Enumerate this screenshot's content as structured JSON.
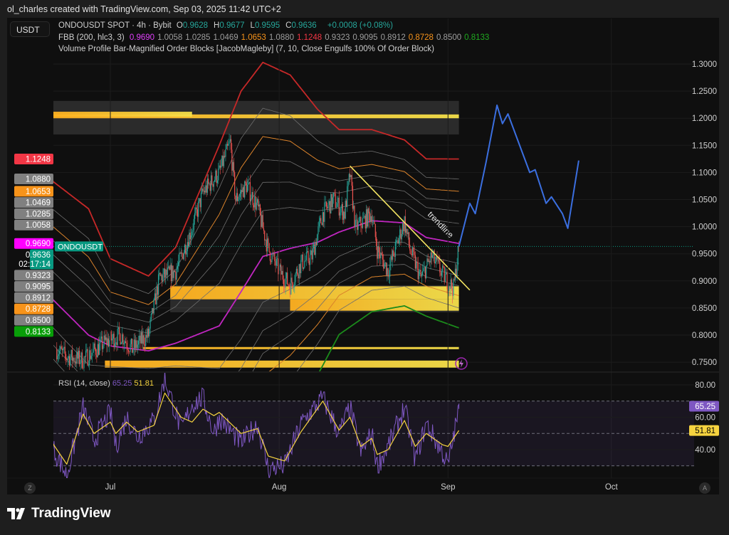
{
  "header": {
    "attribution": "ol_charles created with TradingView.com, Sep 03, 2025 11:42 UTC+2"
  },
  "currency_button": "USDT",
  "legend": {
    "symbol": "ONDOUSDT SPOT · 4h · Bybit",
    "ohlc": [
      {
        "k": "O",
        "v": "0.9628"
      },
      {
        "k": "H",
        "v": "0.9677"
      },
      {
        "k": "L",
        "v": "0.9595"
      },
      {
        "k": "C",
        "v": "0.9636"
      }
    ],
    "change": "+0.0008 (+0.08%)",
    "fbb_title": "FBB (200, hlc3, 3)",
    "fbb_values": [
      {
        "v": "0.9690",
        "color": "#e040fb"
      },
      {
        "v": "1.0058",
        "color": "#9e9e9e"
      },
      {
        "v": "1.0285",
        "color": "#9e9e9e"
      },
      {
        "v": "1.0469",
        "color": "#9e9e9e"
      },
      {
        "v": "1.0653",
        "color": "#f7931a"
      },
      {
        "v": "1.0880",
        "color": "#9e9e9e"
      },
      {
        "v": "1.1248",
        "color": "#f23645"
      },
      {
        "v": "0.9323",
        "color": "#9e9e9e"
      },
      {
        "v": "0.9095",
        "color": "#9e9e9e"
      },
      {
        "v": "0.8912",
        "color": "#9e9e9e"
      },
      {
        "v": "0.8728",
        "color": "#f7931a"
      },
      {
        "v": "0.8500",
        "color": "#9e9e9e"
      },
      {
        "v": "0.8133",
        "color": "#1faa1f"
      }
    ],
    "vp_title": "Volume Profile Bar-Magnified Order Blocks [JacobMagleby] (7, 10, Close Engulfs 100% Of Order Block)"
  },
  "price_axis": {
    "ticks": [
      "1.3000",
      "1.2500",
      "1.2000",
      "1.1500",
      "1.1000",
      "1.0500",
      "1.0000",
      "0.9500",
      "0.9000",
      "0.8500",
      "0.8000",
      "0.7500"
    ]
  },
  "badges": [
    {
      "value": "1.1248",
      "color": "#f23645"
    },
    {
      "value": "1.0880",
      "color": "#808080"
    },
    {
      "value": "1.0653",
      "color": "#f7931a"
    },
    {
      "value": "1.0469",
      "color": "#808080"
    },
    {
      "value": "1.0285",
      "color": "#808080"
    },
    {
      "value": "1.0058",
      "color": "#808080"
    },
    {
      "value": "0.9690",
      "color": "#ff00ff"
    },
    {
      "value": "0.9636",
      "color": "#089981",
      "current": true
    },
    {
      "value": "0.9323",
      "color": "#808080"
    },
    {
      "value": "0.9095",
      "color": "#808080"
    },
    {
      "value": "0.8912",
      "color": "#808080"
    },
    {
      "value": "0.8728",
      "color": "#f7931a"
    },
    {
      "value": "0.8500",
      "color": "#808080"
    },
    {
      "value": "0.8133",
      "color": "#089e08"
    }
  ],
  "current": {
    "symbol_tag": "ONDOUSDT",
    "price": "0.9636",
    "countdown": "02:17:14",
    "color": "#089981"
  },
  "time_axis": {
    "labels": [
      {
        "text": "Jul",
        "date": "2025-07-01"
      },
      {
        "text": "Aug",
        "date": "2025-08-01"
      },
      {
        "text": "Sep",
        "date": "2025-09-01"
      },
      {
        "text": "Oct",
        "date": "2025-10-01"
      }
    ]
  },
  "rsi": {
    "title": "RSI (14, close)",
    "value": "65.25",
    "ma_value": "51.81",
    "ticks": [
      "80.00",
      "60.00",
      "40.00"
    ],
    "color": "#7e57c2",
    "ma_color": "#f5d33f",
    "bands": [
      70,
      50,
      30
    ]
  },
  "buttons": {
    "z": "Z",
    "a": "A"
  },
  "brand": "TradingView",
  "chart_data": {
    "type": "candlestick",
    "symbol": "ONDOUSDT",
    "price_range": [
      0.73,
      1.32
    ],
    "candle_colors": {
      "up": "#26a69a",
      "down": "#ef5350"
    },
    "closes": [
      [
        "2025-06-21",
        0.774
      ],
      [
        "2025-06-23",
        0.76
      ],
      [
        "2025-06-26",
        0.754
      ],
      [
        "2025-06-30",
        0.787
      ],
      [
        "2025-07-03",
        0.8
      ],
      [
        "2025-07-05",
        0.774
      ],
      [
        "2025-07-08",
        0.8
      ],
      [
        "2025-07-10",
        0.905
      ],
      [
        "2025-07-13",
        0.918
      ],
      [
        "2025-07-16",
        0.997
      ],
      [
        "2025-07-18",
        1.063
      ],
      [
        "2025-07-21",
        1.1
      ],
      [
        "2025-07-23",
        1.155
      ],
      [
        "2025-07-24",
        1.05
      ],
      [
        "2025-07-26",
        1.076
      ],
      [
        "2025-07-28",
        1.037
      ],
      [
        "2025-07-30",
        0.958
      ],
      [
        "2025-08-01",
        0.918
      ],
      [
        "2025-08-03",
        0.892
      ],
      [
        "2025-08-05",
        0.932
      ],
      [
        "2025-08-07",
        0.945
      ],
      [
        "2025-08-09",
        1.024
      ],
      [
        "2025-08-11",
        1.05
      ],
      [
        "2025-08-13",
        1.024
      ],
      [
        "2025-08-14",
        1.096
      ],
      [
        "2025-08-15",
        0.997
      ],
      [
        "2025-08-18",
        1.024
      ],
      [
        "2025-08-19",
        0.958
      ],
      [
        "2025-08-21",
        0.918
      ],
      [
        "2025-08-24",
        1.01
      ],
      [
        "2025-08-25",
        0.958
      ],
      [
        "2025-08-27",
        0.905
      ],
      [
        "2025-08-29",
        0.945
      ],
      [
        "2025-08-31",
        0.912
      ],
      [
        "2025-09-02",
        0.886
      ],
      [
        "2025-09-03",
        0.9636
      ]
    ],
    "fbb": {
      "dates": [
        "2025-06-17",
        "2025-06-20",
        "2025-06-27",
        "2025-07-01",
        "2025-07-08",
        "2025-07-13",
        "2025-07-21",
        "2025-07-25",
        "2025-07-29",
        "2025-08-03",
        "2025-08-08",
        "2025-08-12",
        "2025-08-18",
        "2025-08-24",
        "2025-08-28",
        "2025-09-03"
      ],
      "basis": [
        0.875,
        0.87,
        0.8,
        0.78,
        0.771,
        0.785,
        0.817,
        0.88,
        0.945,
        0.96,
        0.971,
        0.99,
        1.011,
        1.007,
        0.98,
        0.969
      ],
      "upper": [
        1.09,
        1.087,
        1.033,
        0.941,
        0.909,
        0.962,
        1.15,
        1.25,
        1.303,
        1.28,
        1.217,
        1.179,
        1.179,
        1.16,
        1.125,
        1.1248
      ],
      "levels": [
        0.236,
        0.382,
        0.5,
        0.618,
        0.764,
        1
      ],
      "colors": {
        "basis": "#c026c0",
        "upper": "#c62828",
        "lower": "#1b8a1b",
        "fib618": "#d9822b",
        "other": "#6e6e6e"
      }
    },
    "order_blocks": [
      {
        "from": "2025-06-20",
        "to": "2025-09-03",
        "top": 1.232,
        "bottom": 1.17,
        "kind": "zone"
      },
      {
        "from": "2025-06-20",
        "to": "2025-09-03",
        "top": 1.207,
        "bottom": 1.2,
        "kind": "bar"
      },
      {
        "from": "2025-06-20",
        "to": "2025-07-16",
        "top": 1.212,
        "bottom": 1.203,
        "kind": "bar"
      },
      {
        "from": "2025-07-12",
        "to": "2025-09-03",
        "top": 0.892,
        "bottom": 0.842,
        "kind": "zone"
      },
      {
        "from": "2025-07-12",
        "to": "2025-09-03",
        "top": 0.89,
        "bottom": 0.866,
        "kind": "bar"
      },
      {
        "from": "2025-08-03",
        "to": "2025-09-03",
        "top": 0.866,
        "bottom": 0.845,
        "kind": "bar"
      },
      {
        "from": "2025-07-07",
        "to": "2025-09-03",
        "top": 0.778,
        "bottom": 0.774,
        "kind": "bar"
      },
      {
        "from": "2025-06-30",
        "to": "2025-09-03",
        "top": 0.753,
        "bottom": 0.74,
        "kind": "bar"
      }
    ],
    "trendline": {
      "label": "trendline",
      "from": [
        "2025-08-14",
        1.112
      ],
      "to": [
        "2025-09-05",
        0.883
      ],
      "color": "#f5e663"
    },
    "forecast": {
      "color": "#3b6fe0",
      "points": [
        [
          "2025-09-03",
          0.9636
        ],
        [
          "2025-09-05",
          1.043
        ],
        [
          "2025-09-06",
          1.024
        ],
        [
          "2025-09-08",
          1.12
        ],
        [
          "2025-09-10",
          1.224
        ],
        [
          "2025-09-11",
          1.19
        ],
        [
          "2025-09-12",
          1.208
        ],
        [
          "2025-09-16",
          1.1
        ],
        [
          "2025-09-17",
          1.105
        ],
        [
          "2025-09-19",
          1.043
        ],
        [
          "2025-09-20",
          1.055
        ],
        [
          "2025-09-22",
          1.024
        ],
        [
          "2025-09-23",
          0.997
        ],
        [
          "2025-09-25",
          1.122
        ]
      ]
    },
    "rsi_series": {
      "dates": [
        "2025-06-20",
        "2025-06-23",
        "2025-06-26",
        "2025-06-28",
        "2025-07-01",
        "2025-07-02",
        "2025-07-04",
        "2025-07-06",
        "2025-07-09",
        "2025-07-11",
        "2025-07-14",
        "2025-07-16",
        "2025-07-18",
        "2025-07-20",
        "2025-07-21",
        "2025-07-25",
        "2025-07-28",
        "2025-07-30",
        "2025-08-02",
        "2025-08-05",
        "2025-08-09",
        "2025-08-12",
        "2025-08-14",
        "2025-08-16",
        "2025-08-18",
        "2025-08-19",
        "2025-08-21",
        "2025-08-24",
        "2025-08-26",
        "2025-08-28",
        "2025-08-31",
        "2025-09-01",
        "2025-09-03"
      ],
      "rsi": [
        44,
        24,
        66,
        46,
        63,
        42,
        60,
        48,
        58,
        84,
        52,
        68,
        72,
        50,
        60,
        44,
        56,
        28,
        30,
        56,
        72,
        50,
        66,
        38,
        50,
        30,
        42,
        66,
        34,
        56,
        38,
        30,
        65.25
      ],
      "ma": [
        46,
        31,
        62,
        50,
        57,
        50,
        57,
        51,
        55,
        75,
        60,
        57,
        65,
        61,
        63,
        50,
        53,
        36,
        33,
        51,
        70,
        52,
        60,
        42,
        47,
        37,
        40,
        58,
        42,
        50,
        43,
        42,
        51.81
      ],
      "ylim": [
        20,
        90
      ]
    }
  }
}
